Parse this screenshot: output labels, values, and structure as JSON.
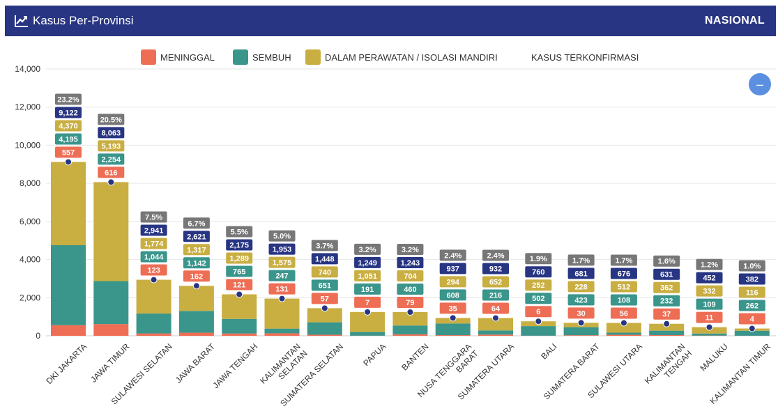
{
  "header": {
    "title": "Kasus Per-Provinsi",
    "right": "NASIONAL",
    "icon": "chart-line-icon",
    "bg_color": "#283583"
  },
  "zoom_button": {
    "label": "–",
    "color": "#5b8fe0",
    "icon": "minus-icon"
  },
  "chart_data": {
    "type": "bar",
    "stacked": true,
    "categories": [
      "DKI JAKARTA",
      "JAWA TIMUR",
      "SULAWESI SELATAN",
      "JAWA BARAT",
      "JAWA TENGAH",
      "KALIMANTAN SELATAN",
      "SUMATERA SELATAN",
      "PAPUA",
      "BANTEN",
      "NUSA TENGGARA BARAT",
      "SUMATERA UTARA",
      "BALI",
      "SUMATERA BARAT",
      "SULAWESI UTARA",
      "KALIMANTAN TENGAH",
      "MALUKU",
      "KALIMANTAN TIMUR"
    ],
    "category_lines": [
      [
        "DKI JAKARTA"
      ],
      [
        "JAWA TIMUR"
      ],
      [
        "SULAWESI SELATAN"
      ],
      [
        "JAWA BARAT"
      ],
      [
        "JAWA TENGAH"
      ],
      [
        "KALIMANTAN",
        "SELATAN"
      ],
      [
        "SUMATERA SELATAN"
      ],
      [
        "PAPUA"
      ],
      [
        "BANTEN"
      ],
      [
        "NUSA TENGGARA",
        "BARAT"
      ],
      [
        "SUMATERA UTARA"
      ],
      [
        "BALI"
      ],
      [
        "SUMATERA BARAT"
      ],
      [
        "SULAWESI UTARA"
      ],
      [
        "KALIMANTAN",
        "TENGAH"
      ],
      [
        "MALUKU"
      ],
      [
        "KALIMANTAN TIMUR"
      ]
    ],
    "series": [
      {
        "name": "MENINGGAL",
        "color": "#ee6e55",
        "values": [
          557,
          616,
          123,
          162,
          121,
          131,
          57,
          7,
          79,
          35,
          64,
          6,
          30,
          56,
          37,
          11,
          4
        ],
        "labels": [
          "557",
          "616",
          "123",
          "162",
          "121",
          "131",
          "57",
          "7",
          "79",
          "35",
          "64",
          "6",
          "30",
          "56",
          "37",
          "11",
          "4"
        ]
      },
      {
        "name": "SEMBUH",
        "color": "#3a958b",
        "values": [
          4195,
          2254,
          1044,
          1142,
          765,
          247,
          651,
          191,
          460,
          608,
          216,
          502,
          423,
          108,
          232,
          109,
          262
        ],
        "labels": [
          "4,195",
          "2,254",
          "1,044",
          "1,142",
          "765",
          "247",
          "651",
          "191",
          "460",
          "608",
          "216",
          "502",
          "423",
          "108",
          "232",
          "109",
          "262"
        ]
      },
      {
        "name": "DALAM PERAWATAN / ISOLASI MANDIRI",
        "color": "#c9ae42",
        "values": [
          4370,
          5193,
          1774,
          1317,
          1289,
          1575,
          740,
          1051,
          704,
          294,
          652,
          252,
          228,
          512,
          362,
          332,
          116
        ],
        "labels": [
          "4,370",
          "5,193",
          "1,774",
          "1,317",
          "1,289",
          "1,575",
          "740",
          "1,051",
          "704",
          "294",
          "652",
          "252",
          "228",
          "512",
          "362",
          "332",
          "116"
        ]
      }
    ],
    "line_series": {
      "name": "KASUS TERKONFIRMASI",
      "color": "#283583",
      "values": [
        9122,
        8063,
        2941,
        2621,
        2175,
        1953,
        1448,
        1249,
        1243,
        937,
        932,
        760,
        681,
        676,
        631,
        452,
        382
      ],
      "labels": [
        "9,122",
        "8,063",
        "2,941",
        "2,621",
        "2,175",
        "1,953",
        "1,448",
        "1,249",
        "1,243",
        "937",
        "932",
        "760",
        "681",
        "676",
        "631",
        "452",
        "382"
      ]
    },
    "percent_labels": [
      "23.2%",
      "20.5%",
      "7.5%",
      "6.7%",
      "5.5%",
      "5.0%",
      "3.7%",
      "3.2%",
      "3.2%",
      "2.4%",
      "2.4%",
      "1.9%",
      "1.7%",
      "1.7%",
      "1.6%",
      "1.2%",
      "1.0%"
    ],
    "percent_color": "#777777",
    "ylim": [
      0,
      14000
    ],
    "yticks": [
      0,
      2000,
      4000,
      6000,
      8000,
      10000,
      12000,
      14000
    ],
    "ytick_labels": [
      "0",
      "2,000",
      "4,000",
      "6,000",
      "8,000",
      "10,000",
      "12,000",
      "14,000"
    ],
    "grid": true,
    "legend_position": "top-center"
  }
}
